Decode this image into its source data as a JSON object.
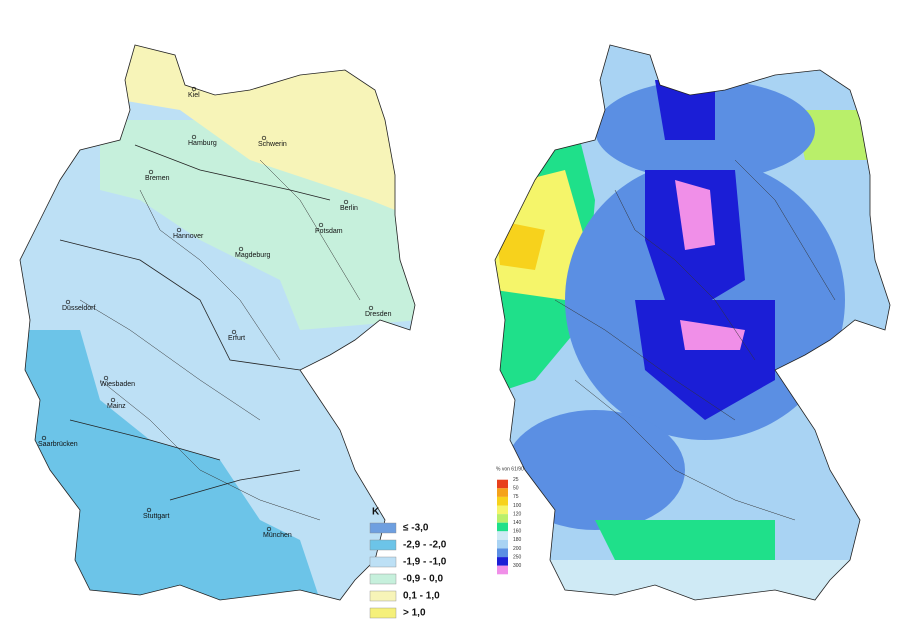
{
  "left_map": {
    "cities": [
      "Kiel",
      "Hamburg",
      "Schwerin",
      "Bremen",
      "Berlin",
      "Potsdam",
      "Hannover",
      "Magdeburg",
      "Düsseldorf",
      "Erfurt",
      "Dresden",
      "Wiesbaden",
      "Mainz",
      "Saarbrücken",
      "Stuttgart",
      "München"
    ],
    "legend": {
      "title": "K",
      "items": [
        {
          "label": "≤ -3,0",
          "color": "#6e9fe0"
        },
        {
          "label": "-2,9 - -2,0",
          "color": "#6cc4e8"
        },
        {
          "label": "-1,9 - -1,0",
          "color": "#bde0f5"
        },
        {
          "label": "-0,9 - 0,0",
          "color": "#c6f0dc"
        },
        {
          "label": "0,1 - 1,0",
          "color": "#f7f4b8"
        },
        {
          "label": "> 1,0",
          "color": "#f5f07a"
        }
      ]
    }
  },
  "right_map": {
    "legend": {
      "title": "% von 61/90",
      "items": [
        {
          "label": "25",
          "color": "#e8401c"
        },
        {
          "label": "50",
          "color": "#f5a21a"
        },
        {
          "label": "75",
          "color": "#f7d21c"
        },
        {
          "label": "100",
          "color": "#f5f56a"
        },
        {
          "label": "120",
          "color": "#b9ef6a"
        },
        {
          "label": "140",
          "color": "#1fe08a"
        },
        {
          "label": "160",
          "color": "#cfeaf5"
        },
        {
          "label": "180",
          "color": "#a9d3f3"
        },
        {
          "label": "200",
          "color": "#5b8fe3"
        },
        {
          "label": "250",
          "color": "#1b1ed6"
        },
        {
          "label": "300",
          "color": "#f08fe8"
        }
      ]
    }
  }
}
